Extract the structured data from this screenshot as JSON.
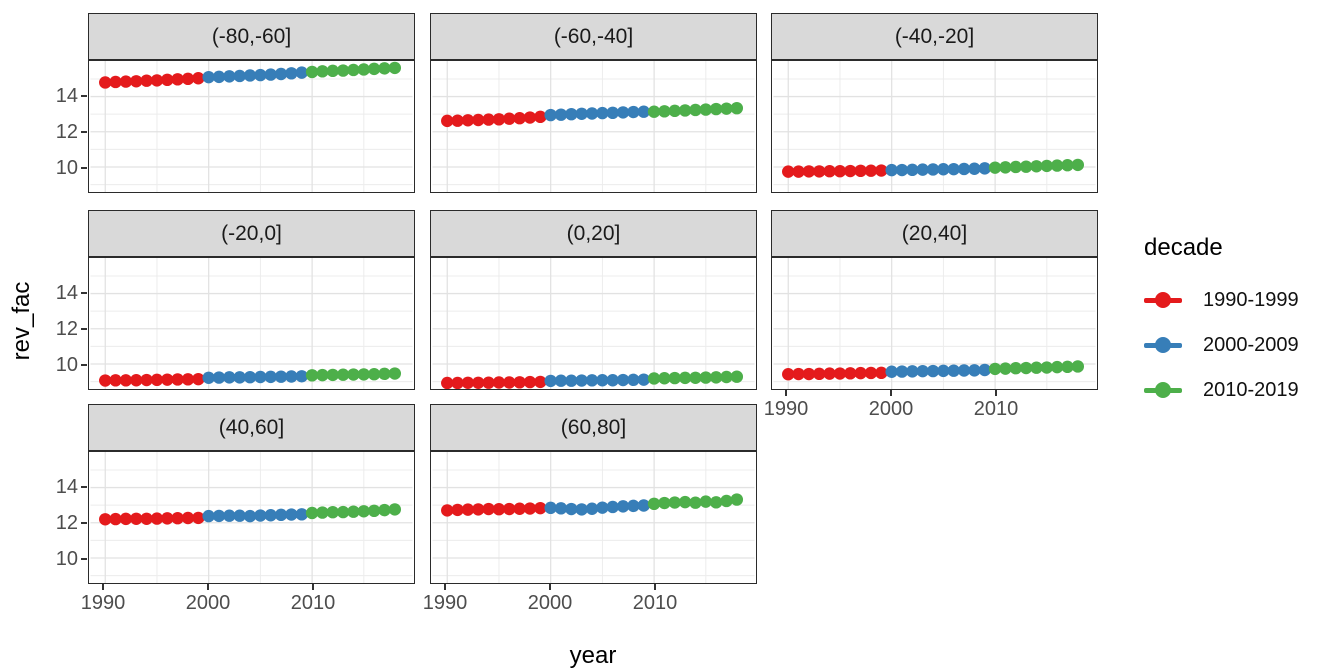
{
  "figure": {
    "x_axis_title": "year",
    "y_axis_title": "rev_fac"
  },
  "legend": {
    "title": "decade"
  },
  "colors": {
    "decade_1990": "#E41A1C",
    "decade_2000": "#377EB8",
    "decade_2010": "#4DAF4A",
    "strip_fill": "#D9D9D9",
    "panel_border": "#2B2B2B",
    "grid_major": "#E2E2E2",
    "grid_minor": "#ECECEC",
    "tick_text": "#4D4D4D"
  },
  "chart_data": {
    "type": "scatter",
    "title": "",
    "xlabel": "year",
    "ylabel": "rev_fac",
    "x_ticks": [
      1990,
      2000,
      2010
    ],
    "y_ticks": [
      14,
      12,
      10
    ],
    "x_minor_ticks": [
      1995,
      2005,
      2015
    ],
    "y_minor_ticks": [
      9,
      11,
      13,
      15
    ],
    "xlim": [
      1988.57,
      2019.71
    ],
    "ylim": [
      8.58,
      16.02
    ],
    "grid": "major+minor",
    "legend_position": "right",
    "legend_title": "decade",
    "series_groups": [
      {
        "name": "1990-1999",
        "color": "#E41A1C",
        "start_index": 0,
        "end_index": 9
      },
      {
        "name": "2000-2009",
        "color": "#377EB8",
        "start_index": 10,
        "end_index": 19
      },
      {
        "name": "2010-2019",
        "color": "#4DAF4A",
        "start_index": 20,
        "end_index": 28
      }
    ],
    "x": [
      1990,
      1991,
      1992,
      1993,
      1994,
      1995,
      1996,
      1997,
      1998,
      1999,
      2000,
      2001,
      2002,
      2003,
      2004,
      2005,
      2006,
      2007,
      2008,
      2009,
      2010,
      2011,
      2012,
      2013,
      2014,
      2015,
      2016,
      2017,
      2018
    ],
    "facets": [
      {
        "label": "(-80,-60]",
        "values": [
          14.8,
          14.83,
          14.85,
          14.87,
          14.9,
          14.92,
          14.95,
          14.98,
          15.01,
          15.04,
          15.1,
          15.12,
          15.15,
          15.17,
          15.2,
          15.22,
          15.25,
          15.28,
          15.32,
          15.36,
          15.4,
          15.43,
          15.46,
          15.48,
          15.51,
          15.54,
          15.57,
          15.6,
          15.63
        ]
      },
      {
        "label": "(-60,-40]",
        "values": [
          12.62,
          12.63,
          12.65,
          12.67,
          12.69,
          12.71,
          12.74,
          12.77,
          12.81,
          12.85,
          12.95,
          12.97,
          13.0,
          13.02,
          13.04,
          13.06,
          13.08,
          13.1,
          13.12,
          13.14,
          13.14,
          13.16,
          13.19,
          13.21,
          13.24,
          13.26,
          13.29,
          13.31,
          13.34
        ]
      },
      {
        "label": "(-40,-20]",
        "values": [
          9.74,
          9.74,
          9.75,
          9.75,
          9.76,
          9.76,
          9.77,
          9.78,
          9.79,
          9.8,
          9.82,
          9.83,
          9.84,
          9.85,
          9.86,
          9.87,
          9.88,
          9.89,
          9.9,
          9.92,
          9.96,
          9.98,
          10.0,
          10.02,
          10.04,
          10.06,
          10.08,
          10.1,
          10.12
        ]
      },
      {
        "label": "(-20,0]",
        "values": [
          9.06,
          9.07,
          9.07,
          9.08,
          9.09,
          9.1,
          9.11,
          9.12,
          9.13,
          9.14,
          9.22,
          9.23,
          9.24,
          9.24,
          9.25,
          9.26,
          9.27,
          9.28,
          9.29,
          9.3,
          9.36,
          9.37,
          9.38,
          9.39,
          9.4,
          9.41,
          9.42,
          9.44,
          9.46
        ]
      },
      {
        "label": "(0,20]",
        "values": [
          8.92,
          8.92,
          8.93,
          8.93,
          8.94,
          8.95,
          8.95,
          8.96,
          8.97,
          8.98,
          9.04,
          9.05,
          9.05,
          9.06,
          9.07,
          9.08,
          9.08,
          9.09,
          9.1,
          9.11,
          9.18,
          9.19,
          9.2,
          9.21,
          9.22,
          9.23,
          9.24,
          9.26,
          9.28
        ]
      },
      {
        "label": "(20,40]",
        "values": [
          9.42,
          9.43,
          9.43,
          9.44,
          9.45,
          9.46,
          9.47,
          9.48,
          9.49,
          9.5,
          9.56,
          9.57,
          9.58,
          9.59,
          9.6,
          9.61,
          9.62,
          9.63,
          9.64,
          9.66,
          9.72,
          9.74,
          9.76,
          9.77,
          9.79,
          9.8,
          9.82,
          9.84,
          9.86
        ]
      },
      {
        "label": "(40,60]",
        "values": [
          12.2,
          12.21,
          12.22,
          12.23,
          12.23,
          12.24,
          12.25,
          12.26,
          12.27,
          12.28,
          12.38,
          12.39,
          12.4,
          12.4,
          12.38,
          12.41,
          12.43,
          12.45,
          12.47,
          12.48,
          12.56,
          12.58,
          12.6,
          12.61,
          12.63,
          12.65,
          12.68,
          12.72,
          12.76
        ]
      },
      {
        "label": "(60,80]",
        "values": [
          12.7,
          12.73,
          12.75,
          12.76,
          12.78,
          12.77,
          12.78,
          12.8,
          12.81,
          12.83,
          12.85,
          12.82,
          12.78,
          12.76,
          12.8,
          12.86,
          12.9,
          12.93,
          12.96,
          12.98,
          13.08,
          13.12,
          13.15,
          13.17,
          13.14,
          13.2,
          13.16,
          13.24,
          13.32
        ]
      }
    ]
  }
}
